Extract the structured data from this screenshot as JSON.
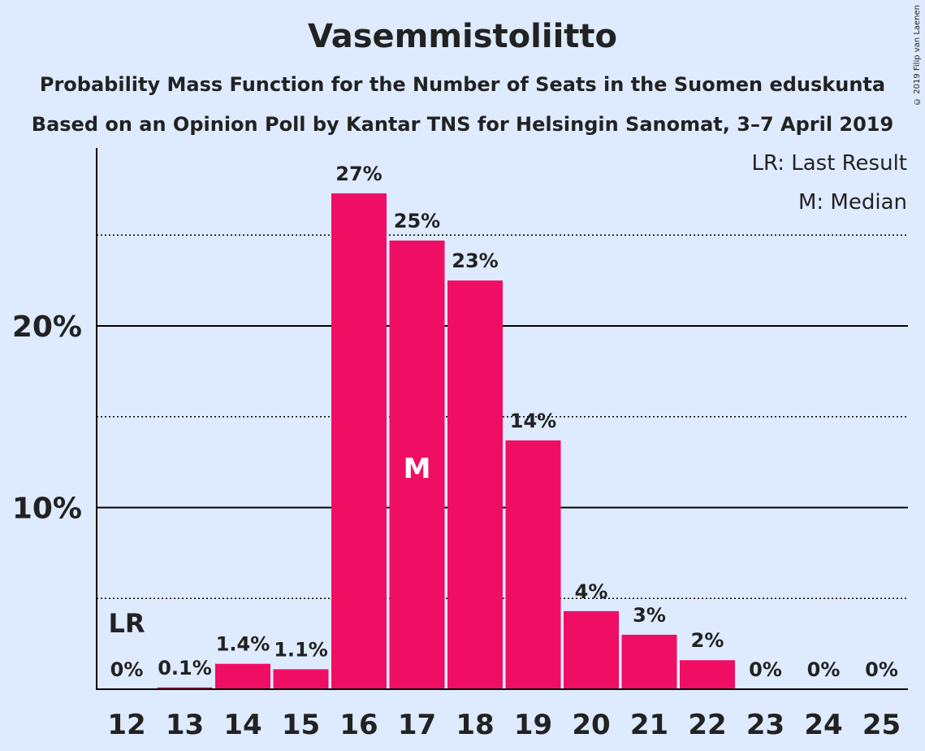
{
  "title": "Vasemmistoliitto",
  "subtitle_1": "Probability Mass Function for the Number of Seats in the Suomen eduskunta",
  "subtitle_2": "Based on an Opinion Poll by Kantar TNS for Helsingin Sanomat, 3–7 April 2019",
  "copyright": "© 2019 Filip van Laenen",
  "colors": {
    "bar": "#f00e64",
    "background": "#deebff",
    "text": "#222222"
  },
  "chart_data": {
    "type": "bar",
    "categories": [
      "12",
      "13",
      "14",
      "15",
      "16",
      "17",
      "18",
      "19",
      "20",
      "21",
      "22",
      "23",
      "24",
      "25"
    ],
    "values": [
      0,
      0.1,
      1.4,
      1.1,
      27.3,
      24.7,
      22.5,
      13.7,
      4.3,
      3.0,
      1.6,
      0,
      0,
      0
    ],
    "data_labels": [
      "0%",
      "0.1%",
      "1.4%",
      "1.1%",
      "27%",
      "25%",
      "23%",
      "14%",
      "4%",
      "3%",
      "2%",
      "0%",
      "0%",
      "0%"
    ],
    "y_ticks": [
      {
        "value": 10,
        "label": "10%"
      },
      {
        "value": 20,
        "label": "20%"
      }
    ],
    "y_minor_gridlines": [
      5,
      15,
      25
    ],
    "ylim": [
      0,
      30
    ],
    "last_result": {
      "category": "12",
      "marker": "LR"
    },
    "median": {
      "category": "17",
      "marker": "M"
    },
    "legend": [
      "LR: Last Result",
      "M: Median"
    ],
    "legend_position": "top-right"
  }
}
